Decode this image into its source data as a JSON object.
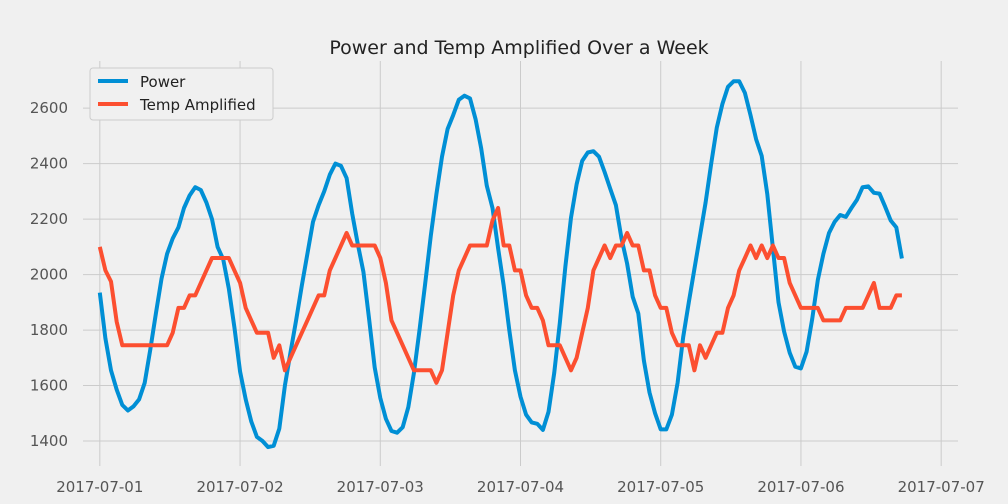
{
  "chart_data": {
    "type": "line",
    "title": "Power and Temp Amplified Over a Week",
    "xlabel": "",
    "ylabel": "",
    "xlim": [
      -0.12,
      6.12
    ],
    "ylim": [
      1310,
      2770
    ],
    "x_ticks": [
      "2017-07-01",
      "2017-07-02",
      "2017-07-03",
      "2017-07-04",
      "2017-07-05",
      "2017-07-06",
      "2017-07-07"
    ],
    "y_ticks": [
      1400,
      1600,
      1800,
      2000,
      2200,
      2400,
      2600
    ],
    "grid": true,
    "legend_position": "top-left",
    "x_note": "x values are days since 2017-07-01 00:00",
    "series": [
      {
        "name": "Power",
        "color": "#008fd5",
        "points": [
          [
            0,
            1935
          ],
          [
            0.04,
            1770
          ],
          [
            0.08,
            1655
          ],
          [
            0.12,
            1585
          ],
          [
            0.16,
            1530
          ],
          [
            0.2,
            1510
          ],
          [
            0.24,
            1525
          ],
          [
            0.28,
            1550
          ],
          [
            0.32,
            1610
          ],
          [
            0.36,
            1730
          ],
          [
            0.4,
            1860
          ],
          [
            0.44,
            1985
          ],
          [
            0.48,
            2075
          ],
          [
            0.52,
            2130
          ],
          [
            0.56,
            2170
          ],
          [
            0.6,
            2240
          ],
          [
            0.64,
            2285
          ],
          [
            0.68,
            2315
          ],
          [
            0.72,
            2305
          ],
          [
            0.76,
            2260
          ],
          [
            0.8,
            2200
          ],
          [
            0.84,
            2100
          ],
          [
            0.88,
            2055
          ],
          [
            0.92,
            1950
          ],
          [
            0.96,
            1810
          ],
          [
            1.0,
            1650
          ],
          [
            1.04,
            1550
          ],
          [
            1.08,
            1470
          ],
          [
            1.12,
            1415
          ],
          [
            1.16,
            1400
          ],
          [
            1.2,
            1378
          ],
          [
            1.24,
            1383
          ],
          [
            1.28,
            1445
          ],
          [
            1.32,
            1600
          ],
          [
            1.36,
            1720
          ],
          [
            1.4,
            1835
          ],
          [
            1.44,
            1960
          ],
          [
            1.48,
            2075
          ],
          [
            1.52,
            2190
          ],
          [
            1.56,
            2250
          ],
          [
            1.6,
            2300
          ],
          [
            1.64,
            2360
          ],
          [
            1.68,
            2400
          ],
          [
            1.72,
            2392
          ],
          [
            1.76,
            2348
          ],
          [
            1.8,
            2220
          ],
          [
            1.84,
            2110
          ],
          [
            1.88,
            2010
          ],
          [
            1.92,
            1840
          ],
          [
            1.96,
            1665
          ],
          [
            2.0,
            1555
          ],
          [
            2.04,
            1480
          ],
          [
            2.08,
            1436
          ],
          [
            2.12,
            1430
          ],
          [
            2.16,
            1450
          ],
          [
            2.2,
            1522
          ],
          [
            2.24,
            1645
          ],
          [
            2.28,
            1800
          ],
          [
            2.32,
            1965
          ],
          [
            2.36,
            2140
          ],
          [
            2.4,
            2290
          ],
          [
            2.44,
            2425
          ],
          [
            2.48,
            2525
          ],
          [
            2.52,
            2575
          ],
          [
            2.56,
            2630
          ],
          [
            2.6,
            2645
          ],
          [
            2.64,
            2635
          ],
          [
            2.68,
            2560
          ],
          [
            2.72,
            2455
          ],
          [
            2.76,
            2320
          ],
          [
            2.8,
            2240
          ],
          [
            2.84,
            2095
          ],
          [
            2.88,
            1960
          ],
          [
            2.92,
            1800
          ],
          [
            2.96,
            1655
          ],
          [
            3.0,
            1560
          ],
          [
            3.04,
            1495
          ],
          [
            3.08,
            1467
          ],
          [
            3.12,
            1462
          ],
          [
            3.16,
            1440
          ],
          [
            3.2,
            1505
          ],
          [
            3.24,
            1645
          ],
          [
            3.28,
            1825
          ],
          [
            3.32,
            2030
          ],
          [
            3.36,
            2205
          ],
          [
            3.4,
            2325
          ],
          [
            3.44,
            2410
          ],
          [
            3.48,
            2440
          ],
          [
            3.52,
            2445
          ],
          [
            3.56,
            2425
          ],
          [
            3.6,
            2370
          ],
          [
            3.64,
            2310
          ],
          [
            3.68,
            2250
          ],
          [
            3.72,
            2130
          ],
          [
            3.76,
            2040
          ],
          [
            3.8,
            1920
          ],
          [
            3.84,
            1860
          ],
          [
            3.88,
            1690
          ],
          [
            3.92,
            1575
          ],
          [
            3.96,
            1500
          ],
          [
            4.0,
            1442
          ],
          [
            4.04,
            1442
          ],
          [
            4.08,
            1495
          ],
          [
            4.12,
            1610
          ],
          [
            4.16,
            1775
          ],
          [
            4.2,
            1900
          ],
          [
            4.24,
            2020
          ],
          [
            4.28,
            2140
          ],
          [
            4.32,
            2260
          ],
          [
            4.36,
            2400
          ],
          [
            4.4,
            2530
          ],
          [
            4.44,
            2615
          ],
          [
            4.48,
            2677
          ],
          [
            4.52,
            2697
          ],
          [
            4.56,
            2697
          ],
          [
            4.6,
            2655
          ],
          [
            4.64,
            2575
          ],
          [
            4.68,
            2488
          ],
          [
            4.72,
            2428
          ],
          [
            4.76,
            2290
          ],
          [
            4.8,
            2095
          ],
          [
            4.84,
            1900
          ],
          [
            4.88,
            1795
          ],
          [
            4.92,
            1718
          ],
          [
            4.96,
            1668
          ],
          [
            5.0,
            1662
          ],
          [
            5.04,
            1722
          ],
          [
            5.08,
            1840
          ],
          [
            5.12,
            1980
          ],
          [
            5.16,
            2075
          ],
          [
            5.2,
            2150
          ],
          [
            5.24,
            2190
          ],
          [
            5.28,
            2215
          ],
          [
            5.32,
            2208
          ],
          [
            5.36,
            2240
          ],
          [
            5.4,
            2270
          ],
          [
            5.44,
            2315
          ],
          [
            5.48,
            2318
          ],
          [
            5.52,
            2295
          ],
          [
            5.56,
            2292
          ],
          [
            5.6,
            2245
          ],
          [
            5.64,
            2195
          ],
          [
            5.68,
            2170
          ],
          [
            5.72,
            2058
          ]
        ]
      },
      {
        "name": "Temp Amplified",
        "color": "#fc4f30",
        "points": [
          [
            0,
            2100
          ],
          [
            0.04,
            2015
          ],
          [
            0.08,
            1975
          ],
          [
            0.12,
            1830
          ],
          [
            0.16,
            1745
          ],
          [
            0.2,
            1745
          ],
          [
            0.24,
            1745
          ],
          [
            0.28,
            1745
          ],
          [
            0.32,
            1745
          ],
          [
            0.36,
            1745
          ],
          [
            0.4,
            1745
          ],
          [
            0.44,
            1745
          ],
          [
            0.48,
            1745
          ],
          [
            0.52,
            1790
          ],
          [
            0.56,
            1880
          ],
          [
            0.6,
            1880
          ],
          [
            0.64,
            1925
          ],
          [
            0.68,
            1925
          ],
          [
            0.72,
            1970
          ],
          [
            0.76,
            2015
          ],
          [
            0.8,
            2060
          ],
          [
            0.84,
            2060
          ],
          [
            0.88,
            2060
          ],
          [
            0.92,
            2060
          ],
          [
            0.96,
            2015
          ],
          [
            1.0,
            1970
          ],
          [
            1.04,
            1880
          ],
          [
            1.08,
            1835
          ],
          [
            1.12,
            1790
          ],
          [
            1.16,
            1790
          ],
          [
            1.2,
            1790
          ],
          [
            1.24,
            1700
          ],
          [
            1.28,
            1745
          ],
          [
            1.32,
            1655
          ],
          [
            1.36,
            1700
          ],
          [
            1.4,
            1745
          ],
          [
            1.44,
            1790
          ],
          [
            1.48,
            1835
          ],
          [
            1.52,
            1880
          ],
          [
            1.56,
            1925
          ],
          [
            1.6,
            1925
          ],
          [
            1.64,
            2015
          ],
          [
            1.68,
            2060
          ],
          [
            1.72,
            2105
          ],
          [
            1.76,
            2150
          ],
          [
            1.8,
            2105
          ],
          [
            1.84,
            2105
          ],
          [
            1.88,
            2105
          ],
          [
            1.92,
            2105
          ],
          [
            1.96,
            2105
          ],
          [
            2.0,
            2060
          ],
          [
            2.04,
            1970
          ],
          [
            2.08,
            1835
          ],
          [
            2.12,
            1790
          ],
          [
            2.16,
            1745
          ],
          [
            2.2,
            1700
          ],
          [
            2.24,
            1655
          ],
          [
            2.28,
            1655
          ],
          [
            2.32,
            1655
          ],
          [
            2.36,
            1655
          ],
          [
            2.4,
            1610
          ],
          [
            2.44,
            1655
          ],
          [
            2.48,
            1790
          ],
          [
            2.52,
            1925
          ],
          [
            2.56,
            2015
          ],
          [
            2.6,
            2060
          ],
          [
            2.64,
            2105
          ],
          [
            2.68,
            2105
          ],
          [
            2.72,
            2105
          ],
          [
            2.76,
            2105
          ],
          [
            2.8,
            2195
          ],
          [
            2.84,
            2240
          ],
          [
            2.88,
            2105
          ],
          [
            2.92,
            2105
          ],
          [
            2.96,
            2015
          ],
          [
            3.0,
            2015
          ],
          [
            3.04,
            1925
          ],
          [
            3.08,
            1880
          ],
          [
            3.12,
            1880
          ],
          [
            3.16,
            1835
          ],
          [
            3.2,
            1745
          ],
          [
            3.24,
            1745
          ],
          [
            3.28,
            1745
          ],
          [
            3.32,
            1700
          ],
          [
            3.36,
            1655
          ],
          [
            3.4,
            1700
          ],
          [
            3.44,
            1790
          ],
          [
            3.48,
            1880
          ],
          [
            3.52,
            2015
          ],
          [
            3.56,
            2060
          ],
          [
            3.6,
            2105
          ],
          [
            3.64,
            2060
          ],
          [
            3.68,
            2105
          ],
          [
            3.72,
            2105
          ],
          [
            3.76,
            2150
          ],
          [
            3.8,
            2105
          ],
          [
            3.84,
            2105
          ],
          [
            3.88,
            2015
          ],
          [
            3.92,
            2015
          ],
          [
            3.96,
            1925
          ],
          [
            4.0,
            1880
          ],
          [
            4.04,
            1880
          ],
          [
            4.08,
            1790
          ],
          [
            4.12,
            1745
          ],
          [
            4.16,
            1745
          ],
          [
            4.2,
            1745
          ],
          [
            4.24,
            1655
          ],
          [
            4.28,
            1745
          ],
          [
            4.32,
            1700
          ],
          [
            4.36,
            1745
          ],
          [
            4.4,
            1790
          ],
          [
            4.44,
            1790
          ],
          [
            4.48,
            1880
          ],
          [
            4.52,
            1925
          ],
          [
            4.56,
            2015
          ],
          [
            4.6,
            2060
          ],
          [
            4.64,
            2105
          ],
          [
            4.68,
            2060
          ],
          [
            4.72,
            2105
          ],
          [
            4.76,
            2060
          ],
          [
            4.8,
            2105
          ],
          [
            4.84,
            2060
          ],
          [
            4.88,
            2060
          ],
          [
            4.92,
            1970
          ],
          [
            4.96,
            1925
          ],
          [
            5.0,
            1880
          ],
          [
            5.04,
            1880
          ],
          [
            5.08,
            1880
          ],
          [
            5.12,
            1880
          ],
          [
            5.16,
            1835
          ],
          [
            5.2,
            1835
          ],
          [
            5.24,
            1835
          ],
          [
            5.28,
            1835
          ],
          [
            5.32,
            1880
          ],
          [
            5.36,
            1880
          ],
          [
            5.4,
            1880
          ],
          [
            5.44,
            1880
          ],
          [
            5.48,
            1925
          ],
          [
            5.52,
            1970
          ],
          [
            5.56,
            1880
          ],
          [
            5.6,
            1880
          ],
          [
            5.64,
            1880
          ],
          [
            5.68,
            1925
          ],
          [
            5.72,
            1925
          ]
        ]
      }
    ]
  }
}
